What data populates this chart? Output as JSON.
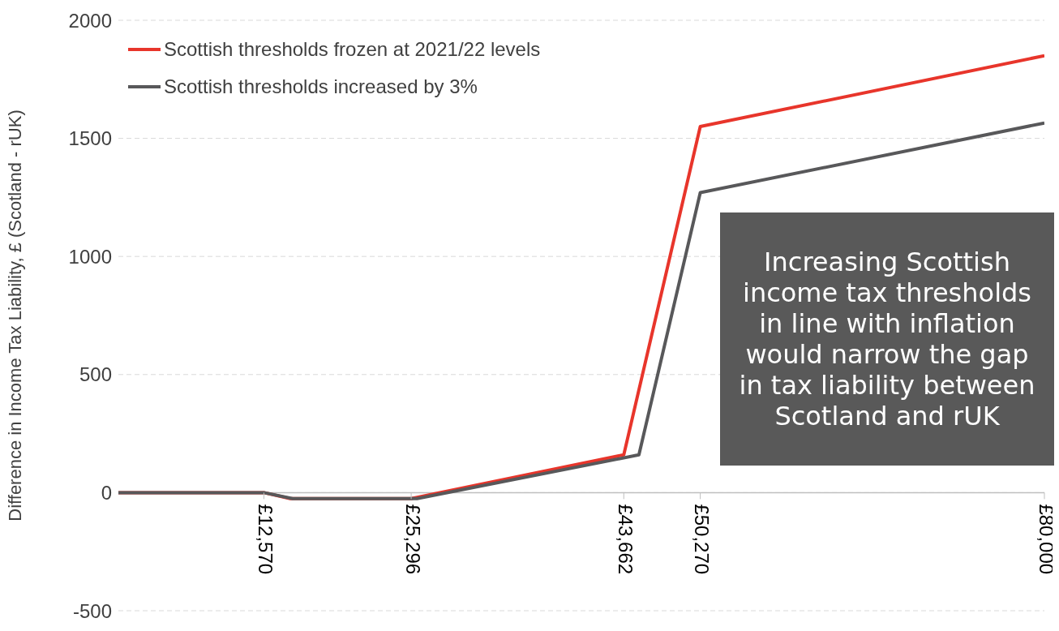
{
  "chart_data": {
    "type": "line",
    "ylabel": "Difference in Income Tax Liability, £ (Scotland - rUK)",
    "xlim": [
      0,
      80000
    ],
    "xticks": [
      {
        "value": 12570,
        "label": "£12,570"
      },
      {
        "value": 25296,
        "label": "£25,296"
      },
      {
        "value": 43662,
        "label": "£43,662"
      },
      {
        "value": 50270,
        "label": "£50,270"
      },
      {
        "value": 80000,
        "label": "£80,000"
      }
    ],
    "ylim": [
      -500,
      2000
    ],
    "yticks": [
      -500,
      0,
      500,
      1000,
      1500,
      2000
    ],
    "grid": "y",
    "legend": "top left",
    "line_style": "solid",
    "marker": "none",
    "series": [
      {
        "name": "Scottish thresholds frozen at 2021/22 levels",
        "color": "#e8352b",
        "x": [
          0,
          12570,
          14850,
          25296,
          43662,
          50270,
          80000
        ],
        "values": [
          0,
          0,
          -25,
          -25,
          160,
          1550,
          1850
        ]
      },
      {
        "name": "Scottish thresholds increased by 3%",
        "color": "#58585a",
        "x": [
          0,
          12570,
          15050,
          25800,
          44970,
          50270,
          80000
        ],
        "values": [
          0,
          0,
          -25,
          -25,
          160,
          1270,
          1565
        ]
      }
    ],
    "annotations": [
      "Increasing Scottish income tax thresholds in line with inflation would narrow the gap in tax liability between Scotland and rUK"
    ]
  }
}
